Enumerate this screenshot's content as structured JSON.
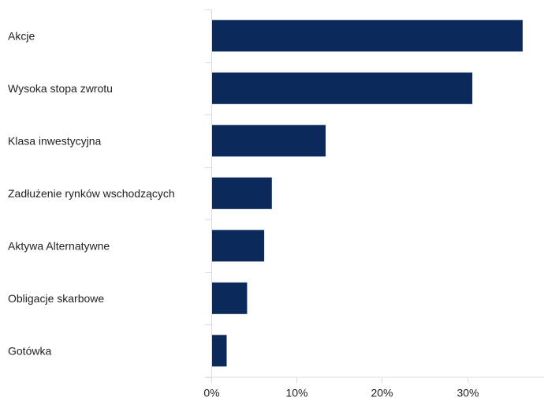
{
  "chart_data": {
    "type": "bar",
    "orientation": "horizontal",
    "categories": [
      "Akcje",
      "Wysoka stopa zwrotu",
      "Klasa inwestycyjna",
      "Zadłużenie rynków wschodzących",
      "Aktywa Alternatywne",
      "Obligacje skarbowe",
      "Gotówka"
    ],
    "values": [
      36.5,
      30.6,
      13.4,
      7.1,
      6.2,
      4.2,
      1.8
    ],
    "xlim": [
      0,
      39
    ],
    "x_ticks": [
      {
        "value": 0,
        "label": "0%"
      },
      {
        "value": 10,
        "label": "10%"
      },
      {
        "value": 20,
        "label": "20%"
      },
      {
        "value": 30,
        "label": "30%"
      }
    ],
    "grid": false,
    "bar_color": "#0b2a5b",
    "axis_color": "#d9dde3",
    "title": "",
    "xlabel": "",
    "ylabel": ""
  }
}
